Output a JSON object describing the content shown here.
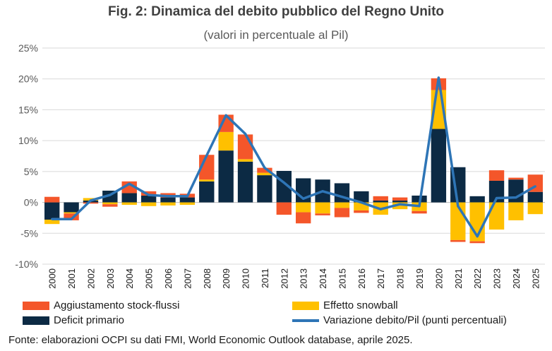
{
  "title": "Fig. 2: Dinamica del debito pubblico del Regno Unito",
  "subtitle": "(valori in percentuale al Pil)",
  "source": "Fonte: elaborazioni OCPI su dati FMI, World Economic Outlook database, aprile 2025.",
  "colors": {
    "stock": "#f4562a",
    "snowball": "#ffc000",
    "primary": "#0c2a44",
    "line": "#2e75b6",
    "grid": "#d9d9d9"
  },
  "chart_data": {
    "type": "bar",
    "categories": [
      "2000",
      "2001",
      "2002",
      "2003",
      "2004",
      "2005",
      "2006",
      "2007",
      "2008",
      "2009",
      "2010",
      "2011",
      "2012",
      "2013",
      "2014",
      "2015",
      "2016",
      "2017",
      "2018",
      "2019",
      "2020",
      "2021",
      "2022",
      "2023",
      "2024",
      "2025"
    ],
    "ylim": [
      -10,
      25
    ],
    "yticks": [
      -10,
      -5,
      0,
      5,
      10,
      15,
      20,
      25
    ],
    "ytick_labels": [
      "-10%",
      "-5%",
      "0%",
      "5%",
      "10%",
      "15%",
      "20%",
      "25%"
    ],
    "grid": true,
    "legend_position": "bottom",
    "series": [
      {
        "name": "Deficit primario",
        "kind": "bar",
        "values": [
          -2.8,
          -1.6,
          0.3,
          1.9,
          1.5,
          1.1,
          0.8,
          0.8,
          3.4,
          8.4,
          6.6,
          4.4,
          5.1,
          3.9,
          3.7,
          3.1,
          1.8,
          0.3,
          0.3,
          1.1,
          11.9,
          5.7,
          1.0,
          3.5,
          3.7,
          1.7
        ]
      },
      {
        "name": "Effetto snowball",
        "kind": "bar",
        "values": [
          -0.7,
          -0.2,
          0.4,
          -0.3,
          -0.4,
          -0.6,
          -0.5,
          -0.4,
          0.3,
          3.0,
          0.4,
          0.4,
          0.0,
          -1.6,
          -1.8,
          -0.9,
          -1.3,
          -2.0,
          -1.1,
          -1.4,
          6.3,
          -6.1,
          -6.3,
          -4.4,
          -2.9,
          -1.9
        ]
      },
      {
        "name": "Aggiustamento stock-flussi",
        "kind": "bar",
        "values": [
          0.9,
          -1.1,
          -0.2,
          -0.4,
          1.9,
          0.7,
          0.7,
          0.6,
          4.0,
          2.8,
          4.0,
          0.8,
          -2.0,
          -1.8,
          -0.3,
          -1.5,
          -0.4,
          0.7,
          0.5,
          -0.4,
          1.9,
          -0.3,
          -0.3,
          1.7,
          0.3,
          2.8
        ]
      },
      {
        "name": "Variazione debito/Pil (punti percentuali)",
        "kind": "line",
        "values": [
          -2.7,
          -2.7,
          0.3,
          1.2,
          3.0,
          1.2,
          1.0,
          1.0,
          7.6,
          14.1,
          11.1,
          5.6,
          3.2,
          0.6,
          1.8,
          0.9,
          0.0,
          -1.1,
          -0.3,
          -0.6,
          20.2,
          -0.6,
          -5.5,
          0.7,
          0.8,
          2.6
        ]
      }
    ]
  }
}
